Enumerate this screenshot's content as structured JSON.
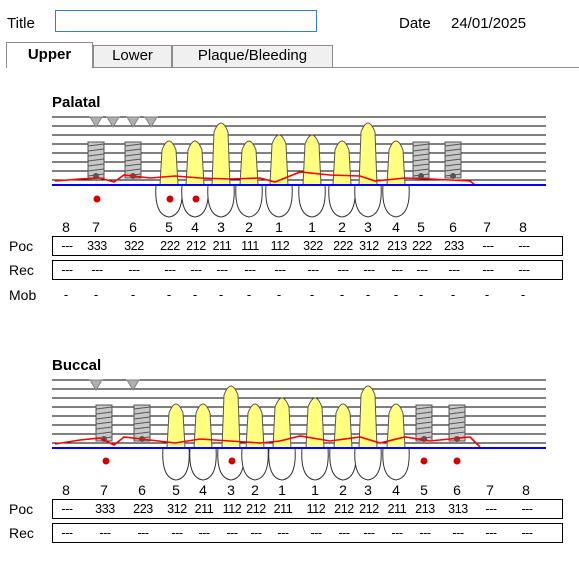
{
  "header": {
    "title_label": "Title",
    "title_value": "",
    "date_label": "Date",
    "date_value": "24/01/2025"
  },
  "tabs": [
    {
      "label": "Upper",
      "active": true
    },
    {
      "label": "Lower",
      "active": false
    },
    {
      "label": "Plaque/Bleeding",
      "active": false
    }
  ],
  "palatal": {
    "title": "Palatal",
    "tooth_numbers": [
      "8",
      "7",
      "6",
      "5",
      "4",
      "3",
      "2",
      "1",
      "1",
      "2",
      "3",
      "4",
      "5",
      "6",
      "7",
      "8"
    ],
    "rows": [
      {
        "label": "Poc",
        "values": [
          "---",
          "333",
          "322",
          "222",
          "212",
          "211",
          "111",
          "112",
          "322",
          "222",
          "312",
          "213",
          "222",
          "233",
          "---",
          "---"
        ]
      },
      {
        "label": "Rec",
        "values": [
          "---",
          "---",
          "---",
          "---",
          "---",
          "---",
          "---",
          "---",
          "---",
          "---",
          "---",
          "---",
          "---",
          "---",
          "---",
          "---"
        ]
      },
      {
        "label": "Mob",
        "values": [
          "-",
          "-",
          "-",
          "-",
          "-",
          "-",
          "-",
          "-",
          "-",
          "-",
          "-",
          "-",
          "-",
          "-",
          "-",
          "-"
        ]
      }
    ]
  },
  "buccal": {
    "title": "Buccal",
    "tooth_numbers": [
      "8",
      "7",
      "6",
      "5",
      "4",
      "3",
      "2",
      "1",
      "1",
      "2",
      "3",
      "4",
      "5",
      "6",
      "7",
      "8"
    ],
    "rows": [
      {
        "label": "Poc",
        "values": [
          "---",
          "333",
          "223",
          "312",
          "211",
          "112",
          "212",
          "211",
          "112",
          "212",
          "212",
          "211",
          "213",
          "313",
          "---",
          "---"
        ]
      },
      {
        "label": "Rec",
        "values": [
          "---",
          "---",
          "---",
          "---",
          "---",
          "---",
          "---",
          "---",
          "---",
          "---",
          "---",
          "---",
          "---",
          "---",
          "---",
          "---"
        ]
      }
    ]
  },
  "colors": {
    "gum_line": "#ff0000",
    "bone_line": "#0000ff",
    "crown_fill": "#ffff80",
    "bleeding_dot": "#d40000",
    "tab_border": "#8c8c8c"
  }
}
